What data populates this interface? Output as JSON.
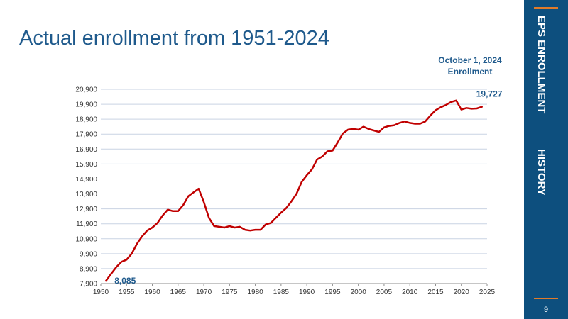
{
  "slide": {
    "title": "Actual enrollment  from 1951-2024",
    "side_label_1": "EPS  ENROLLMENT",
    "side_label_2": "HISTORY",
    "page_number": "9",
    "callout_line1": "October    1,  2024",
    "callout_line2": "Enrollment",
    "colors": {
      "sidebar": "#0d4f7e",
      "accent": "#e07b2a",
      "line": "#c00000",
      "title": "#1f5a8c"
    }
  },
  "chart_data": {
    "type": "line",
    "title": "",
    "xlabel": "",
    "ylabel": "",
    "xlim": [
      1950,
      2025
    ],
    "ylim": [
      7900,
      20900
    ],
    "yticks": [
      "7,900",
      "8,900",
      "9,900",
      "10,900",
      "11,900",
      "12,900",
      "13,900",
      "14,900",
      "15,900",
      "16,900",
      "17,900",
      "18,900",
      "19,900",
      "20,900"
    ],
    "xticks": [
      "1950",
      "1955",
      "1960",
      "1965",
      "1970",
      "1975",
      "1980",
      "1985",
      "1990",
      "1995",
      "2000",
      "2005",
      "2010",
      "2015",
      "2020",
      "2025"
    ],
    "grid": true,
    "series": [
      {
        "x": [
          1951,
          1952,
          1953,
          1954,
          1955,
          1956,
          1957,
          1958,
          1959,
          1960,
          1961,
          1962,
          1963,
          1964,
          1965,
          1966,
          1967,
          1968,
          1969,
          1970,
          1971,
          1972,
          1973,
          1974,
          1975,
          1976,
          1977,
          1978,
          1979,
          1980,
          1981,
          1982,
          1983,
          1984,
          1985,
          1986,
          1987,
          1988,
          1989,
          1990,
          1991,
          1992,
          1993,
          1994,
          1995,
          1996,
          1997,
          1998,
          1999,
          2000,
          2001,
          2002,
          2003,
          2004,
          2005,
          2006,
          2007,
          2008,
          2009,
          2010,
          2011,
          2012,
          2013,
          2014,
          2015,
          2016,
          2017,
          2018,
          2019,
          2020,
          2021,
          2022,
          2023,
          2024
        ],
        "values": [
          8085,
          8550,
          9000,
          9350,
          9500,
          9900,
          10550,
          11050,
          11450,
          11650,
          11950,
          12450,
          12850,
          12750,
          12750,
          13150,
          13750,
          14000,
          14250,
          13350,
          12300,
          11750,
          11700,
          11650,
          11750,
          11650,
          11700,
          11500,
          11450,
          11500,
          11500,
          11850,
          11950,
          12300,
          12650,
          12950,
          13400,
          13900,
          14700,
          15150,
          15550,
          16200,
          16400,
          16750,
          16800,
          17350,
          17950,
          18200,
          18250,
          18200,
          18400,
          18250,
          18150,
          18050,
          18350,
          18450,
          18500,
          18650,
          18750,
          18650,
          18600,
          18600,
          18750,
          19150,
          19500,
          19700,
          19850,
          20050,
          20150,
          19550,
          19650,
          19600,
          19620,
          19727
        ]
      }
    ],
    "annotations": [
      {
        "x": 1951,
        "value": 8085,
        "label": "8,085"
      },
      {
        "x": 2024,
        "value": 19727,
        "label": "19,727"
      }
    ]
  }
}
